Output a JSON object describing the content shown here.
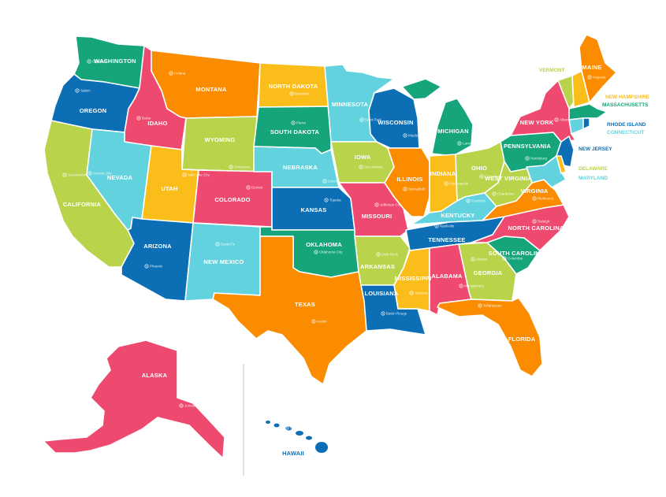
{
  "map": {
    "colors": {
      "green": "#16a57a",
      "blue": "#0c6eb5",
      "pink": "#ee4a6f",
      "orange": "#fb8c00",
      "yellow": "#fbbd1a",
      "lime": "#b9d34a",
      "cyan": "#62d3de",
      "teal": "#1c9f86"
    },
    "states": [
      {
        "id": "washington",
        "label": "WASHINGTON",
        "capital": "Olympia"
      },
      {
        "id": "oregon",
        "label": "OREGON",
        "capital": "Salem"
      },
      {
        "id": "california",
        "label": "CALIFORNIA",
        "capital": "Sacramento"
      },
      {
        "id": "idaho",
        "label": "IDAHO",
        "capital": "Boise"
      },
      {
        "id": "nevada",
        "label": "NEVADA",
        "capital": "Carson City"
      },
      {
        "id": "montana",
        "label": "MONTANA",
        "capital": "Helena"
      },
      {
        "id": "wyoming",
        "label": "WYOMING",
        "capital": "Cheyenne"
      },
      {
        "id": "utah",
        "label": "UTAH",
        "capital": "Salt Lake City"
      },
      {
        "id": "arizona",
        "label": "ARIZONA",
        "capital": "Phoenix"
      },
      {
        "id": "colorado",
        "label": "COLORADO",
        "capital": "Denver"
      },
      {
        "id": "new-mexico",
        "label": "NEW MEXICO",
        "capital": "Santa Fe"
      },
      {
        "id": "north-dakota",
        "label": "NORTH DAKOTA",
        "capital": "Bismarck"
      },
      {
        "id": "south-dakota",
        "label": "SOUTH DAKOTA",
        "capital": "Pierre"
      },
      {
        "id": "nebraska",
        "label": "NEBRASKA",
        "capital": "Lincoln"
      },
      {
        "id": "kansas",
        "label": "KANSAS",
        "capital": "Topeka"
      },
      {
        "id": "oklahoma",
        "label": "OKLAHOMA",
        "capital": "Oklahoma City"
      },
      {
        "id": "texas",
        "label": "TEXAS",
        "capital": "Austin"
      },
      {
        "id": "minnesota",
        "label": "MINNESOTA",
        "capital": "Saint Paul"
      },
      {
        "id": "iowa",
        "label": "IOWA",
        "capital": "Des Moines"
      },
      {
        "id": "missouri",
        "label": "MISSOURI",
        "capital": "Jefferson City"
      },
      {
        "id": "arkansas",
        "label": "ARKANSAS",
        "capital": "Little Rock"
      },
      {
        "id": "louisiana",
        "label": "LOUISIANA",
        "capital": "Baton Rouge"
      },
      {
        "id": "wisconsin",
        "label": "WISCONSIN",
        "capital": "Madison"
      },
      {
        "id": "illinois",
        "label": "ILLINOIS",
        "capital": "Springfield"
      },
      {
        "id": "michigan",
        "label": "MICHIGAN",
        "capital": "Lansing"
      },
      {
        "id": "indiana",
        "label": "INDIANA",
        "capital": "Indianapolis"
      },
      {
        "id": "ohio",
        "label": "OHIO",
        "capital": "Columbus"
      },
      {
        "id": "kentucky",
        "label": "KENTUCKY",
        "capital": "Frankfort"
      },
      {
        "id": "tennessee",
        "label": "TENNESSEE",
        "capital": "Nashville"
      },
      {
        "id": "mississippi",
        "label": "MISSISSIPPI",
        "capital": "Jackson"
      },
      {
        "id": "alabama",
        "label": "ALABAMA",
        "capital": "Montgomery"
      },
      {
        "id": "georgia",
        "label": "GEORGIA",
        "capital": "Atlanta"
      },
      {
        "id": "florida",
        "label": "FLORIDA",
        "capital": "Tallahassee"
      },
      {
        "id": "south-carolina",
        "label": "SOUTH CAROLINA",
        "capital": "Columbia"
      },
      {
        "id": "north-carolina",
        "label": "NORTH CAROLINA",
        "capital": "Raleigh"
      },
      {
        "id": "virginia",
        "label": "VIRGINIA",
        "capital": "Richmond"
      },
      {
        "id": "west-virginia",
        "label": "WEST VIRGINIA",
        "capital": "Charleston"
      },
      {
        "id": "pennsylvania",
        "label": "PENNSYLVANIA",
        "capital": "Harrisburg"
      },
      {
        "id": "new-york",
        "label": "NEW YORK",
        "capital": "Albany"
      },
      {
        "id": "maine",
        "label": "MAINE",
        "capital": "Augusta"
      },
      {
        "id": "alaska",
        "label": "ALASKA",
        "capital": "Juneau"
      },
      {
        "id": "hawaii",
        "label": "HAWAII",
        "capital": "Honolulu"
      }
    ],
    "callouts": [
      {
        "id": "vermont",
        "label": "VERMONT"
      },
      {
        "id": "new-hampshire",
        "label": "NEW HAMPSHIRE"
      },
      {
        "id": "massachusetts",
        "label": "MASSACHUSETTS"
      },
      {
        "id": "rhode-island",
        "label": "RHODE ISLAND"
      },
      {
        "id": "connecticut",
        "label": "CONNECTICUT"
      },
      {
        "id": "new-jersey",
        "label": "NEW JERSEY"
      },
      {
        "id": "delaware",
        "label": "DELAWARE"
      },
      {
        "id": "maryland",
        "label": "MARYLAND"
      }
    ]
  }
}
